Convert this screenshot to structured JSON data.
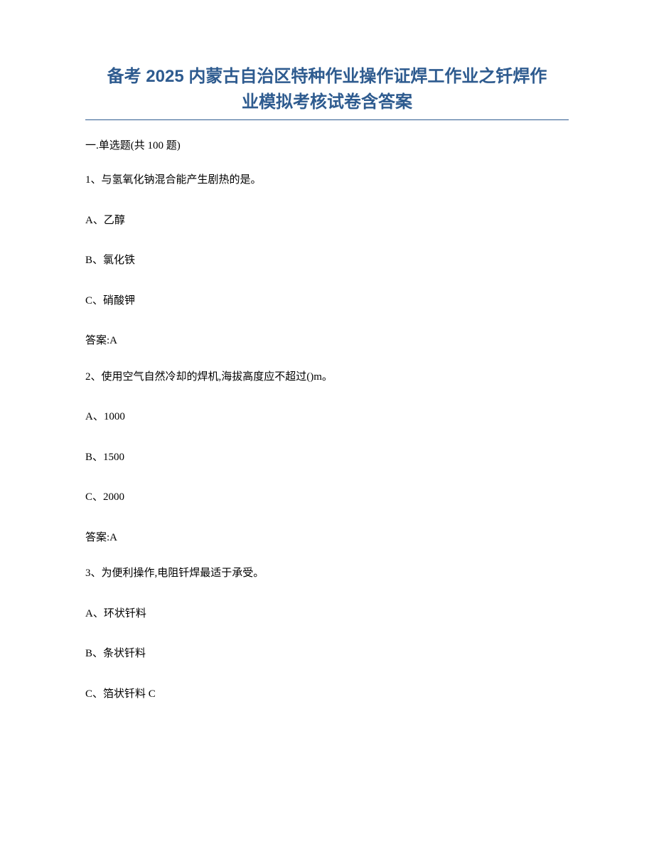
{
  "title_line1": "备考 2025 内蒙古自治区特种作业操作证焊工作业之钎焊作",
  "title_line2": "业模拟考核试卷含答案",
  "section_header": "一.单选题(共 100 题)",
  "questions": [
    {
      "prompt": "1、与氢氧化钠混合能产生剧热的是。",
      "options": [
        "A、乙醇",
        "B、氯化铁",
        "C、硝酸钾"
      ],
      "answer": "答案:A"
    },
    {
      "prompt": "2、使用空气自然冷却的焊机,海拔高度应不超过()m。",
      "options": [
        "A、1000",
        "B、1500",
        "C、2000"
      ],
      "answer": "答案:A"
    },
    {
      "prompt": "3、为便利操作,电阻钎焊最适于承受。",
      "options": [
        "A、环状钎料",
        "B、条状钎料",
        "C、箔状钎料 C"
      ],
      "answer": ""
    }
  ],
  "colors": {
    "title_color": "#2e5b8f",
    "underline_color": "#2e5b8f",
    "text_color": "#000000",
    "background": "#ffffff"
  },
  "typography": {
    "title_fontsize": 24,
    "body_fontsize": 15,
    "title_font": "Microsoft YaHei",
    "body_font": "SimSun"
  }
}
